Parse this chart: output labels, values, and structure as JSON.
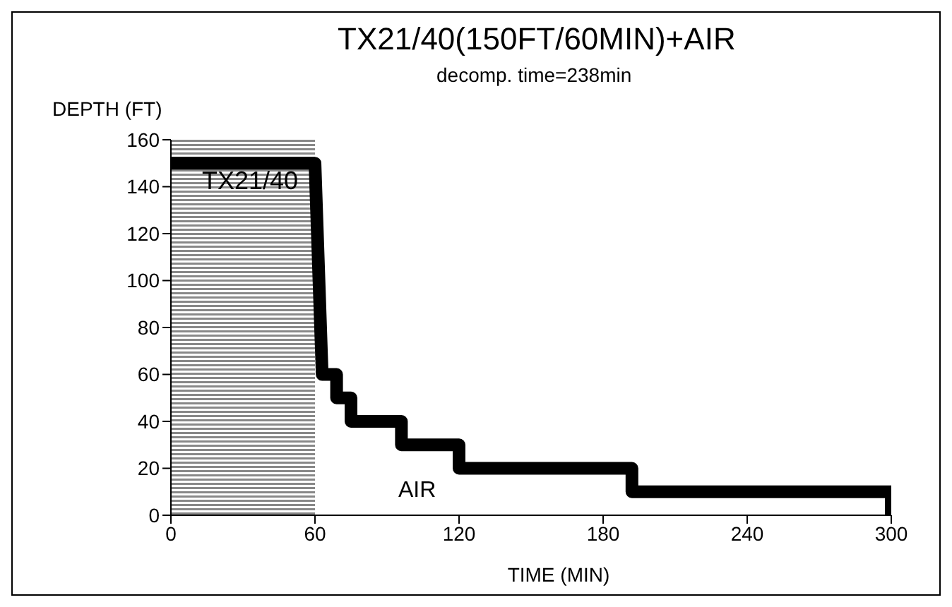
{
  "chart_data": {
    "type": "line",
    "title": "TX21/40(150FT/60MIN)+AIR",
    "subtitle": "decomp. time=238min",
    "xlabel": "TIME (MIN)",
    "ylabel": "DEPTH (FT)",
    "x": [
      0,
      60,
      63,
      69,
      69,
      75,
      75,
      96,
      96,
      120,
      120,
      192,
      192,
      300,
      300
    ],
    "series": [
      {
        "color": "#000000",
        "values": [
          150,
          150,
          60,
          60,
          50,
          50,
          40,
          40,
          30,
          30,
          20,
          20,
          10,
          10,
          0
        ]
      }
    ],
    "xlim": [
      0,
      300
    ],
    "xticks": [
      0,
      60,
      120,
      180,
      240,
      300
    ],
    "ylim": [
      0,
      160
    ],
    "yticks": [
      0,
      20,
      40,
      60,
      80,
      100,
      120,
      140,
      160
    ],
    "bands": [
      {
        "axis": "x",
        "from": 0,
        "to": 60,
        "label": "TX21/40",
        "color": "#888888"
      }
    ],
    "annotations": [
      "AIR"
    ]
  }
}
